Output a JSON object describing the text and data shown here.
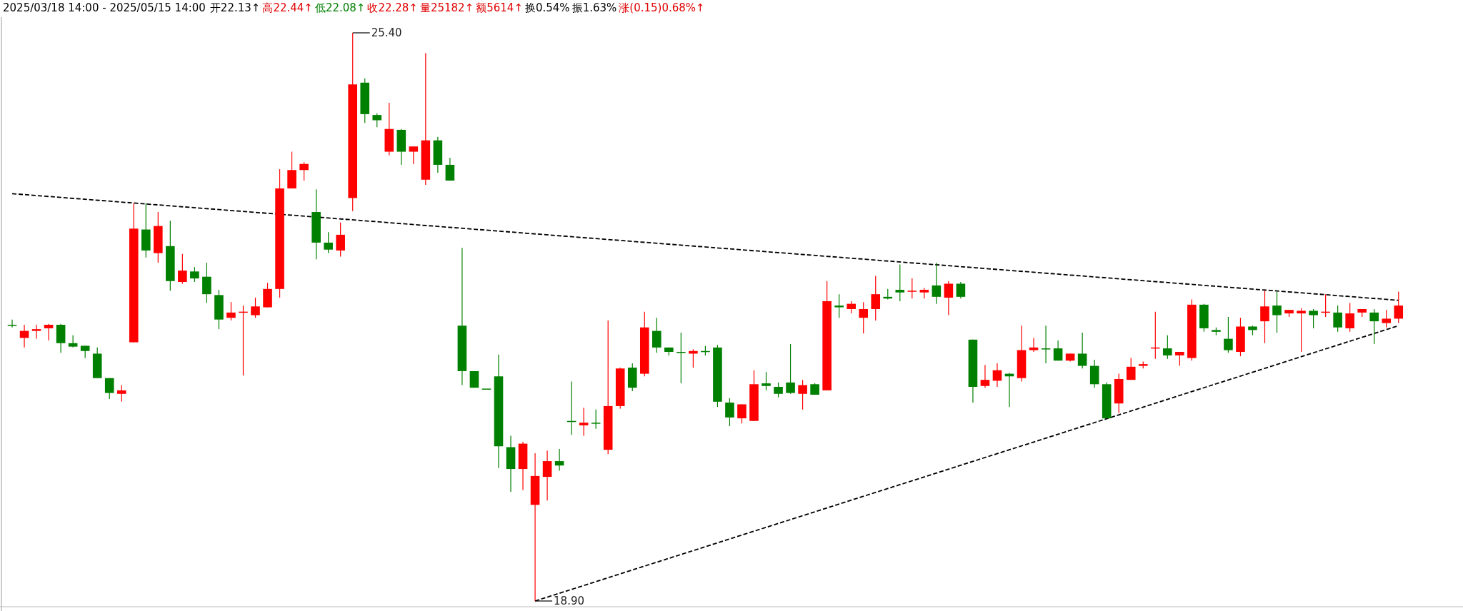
{
  "chart_data": {
    "type": "candlestick",
    "title": "2025/03/18 14:00 - 2025/05/15 14:00",
    "annotations": [
      "开22.13↑",
      "高22.44↑",
      "低22.08↑",
      "收22.28↑",
      "量25182↑",
      "额5614↑",
      "换0.54%",
      "振1.63%",
      "涨(0.15)0.68%↑",
      "25.40",
      "18.90"
    ],
    "categories": [
      null,
      null,
      null,
      null,
      null,
      null,
      null,
      null,
      null,
      null,
      null,
      null,
      null,
      null,
      null,
      null,
      null,
      null,
      null,
      null,
      null,
      null,
      null,
      null,
      null,
      null,
      null,
      null,
      null,
      null,
      null,
      null,
      null,
      null,
      null,
      null,
      null,
      null,
      null,
      null,
      null,
      null,
      null,
      null,
      null,
      null,
      null,
      null,
      null,
      null,
      null,
      null,
      null,
      null,
      null,
      null,
      null,
      null,
      null,
      null,
      null,
      null,
      null,
      null,
      null,
      null,
      null,
      null,
      null,
      null,
      null,
      null,
      null,
      null,
      null,
      null,
      null,
      null,
      null,
      null,
      null,
      null,
      null,
      null,
      null,
      null,
      null,
      null,
      null,
      null,
      null,
      null,
      null,
      null,
      null,
      null,
      null,
      null,
      null,
      null,
      null,
      null,
      null,
      null,
      null,
      null,
      null,
      null,
      null,
      null,
      null,
      null,
      null,
      null,
      null
    ],
    "ohlc": [
      [
        22.06,
        22.12,
        22.03,
        22.05
      ],
      [
        21.91,
        22.06,
        21.8,
        21.99
      ],
      [
        21.99,
        22.06,
        21.9,
        22.01
      ],
      [
        22.02,
        22.07,
        21.88,
        22.06
      ],
      [
        22.06,
        22.07,
        21.74,
        21.85
      ],
      [
        21.85,
        21.94,
        21.8,
        21.81
      ],
      [
        21.82,
        21.82,
        21.68,
        21.76
      ],
      [
        21.73,
        21.8,
        21.45,
        21.45
      ],
      [
        21.45,
        21.45,
        21.21,
        21.28
      ],
      [
        21.27,
        21.37,
        21.18,
        21.31
      ],
      [
        21.86,
        23.45,
        21.86,
        23.16
      ],
      [
        23.15,
        23.45,
        22.83,
        22.91
      ],
      [
        22.88,
        23.35,
        22.77,
        23.19
      ],
      [
        22.96,
        23.25,
        22.45,
        22.56
      ],
      [
        22.55,
        22.87,
        22.53,
        22.68
      ],
      [
        22.67,
        22.72,
        22.55,
        22.59
      ],
      [
        22.61,
        22.77,
        22.31,
        22.41
      ],
      [
        22.4,
        22.46,
        22.01,
        22.12
      ],
      [
        22.14,
        22.32,
        22.11,
        22.2
      ],
      [
        22.2,
        22.28,
        21.48,
        22.21
      ],
      [
        22.17,
        22.37,
        22.14,
        22.27
      ],
      [
        22.26,
        22.54,
        22.26,
        22.47
      ],
      [
        22.47,
        23.84,
        22.37,
        23.62
      ],
      [
        23.62,
        24.04,
        23.62,
        23.83
      ],
      [
        23.83,
        23.92,
        23.71,
        23.9
      ],
      [
        23.35,
        23.61,
        22.81,
        23.0
      ],
      [
        23.0,
        23.12,
        22.88,
        22.92
      ],
      [
        22.91,
        23.23,
        22.84,
        23.09
      ],
      [
        23.51,
        25.4,
        23.36,
        24.81
      ],
      [
        24.83,
        24.88,
        24.37,
        24.47
      ],
      [
        24.46,
        24.48,
        24.32,
        24.4
      ],
      [
        24.04,
        24.6,
        24.0,
        24.3
      ],
      [
        24.29,
        24.3,
        23.89,
        24.04
      ],
      [
        24.04,
        24.1,
        23.9,
        24.1
      ],
      [
        23.72,
        25.17,
        23.66,
        24.17
      ],
      [
        24.17,
        24.21,
        23.8,
        23.89
      ],
      [
        23.89,
        23.97,
        23.71,
        23.71
      ],
      [
        22.05,
        22.94,
        21.37,
        21.53
      ],
      [
        21.53,
        21.53,
        21.34,
        21.34
      ],
      [
        21.33,
        21.33,
        21.33,
        21.33
      ],
      [
        21.47,
        21.72,
        20.42,
        20.67
      ],
      [
        20.66,
        20.79,
        20.15,
        20.41
      ],
      [
        20.41,
        20.72,
        20.17,
        20.7
      ],
      [
        20.0,
        20.59,
        18.9,
        20.33
      ],
      [
        20.32,
        20.62,
        20.05,
        20.5
      ],
      [
        20.5,
        20.64,
        20.39,
        20.45
      ],
      [
        20.96,
        21.41,
        20.8,
        20.95
      ],
      [
        20.91,
        21.11,
        20.79,
        20.94
      ],
      [
        20.94,
        21.09,
        20.87,
        20.93
      ],
      [
        20.63,
        22.11,
        20.58,
        21.13
      ],
      [
        21.13,
        21.57,
        21.1,
        21.56
      ],
      [
        21.57,
        21.62,
        21.3,
        21.34
      ],
      [
        21.5,
        22.21,
        21.47,
        22.03
      ],
      [
        21.99,
        22.14,
        21.74,
        21.8
      ],
      [
        21.8,
        21.8,
        21.71,
        21.75
      ],
      [
        21.75,
        21.97,
        21.39,
        21.74
      ],
      [
        21.73,
        21.78,
        21.57,
        21.76
      ],
      [
        21.76,
        21.82,
        21.71,
        21.75
      ],
      [
        21.8,
        21.83,
        21.12,
        21.18
      ],
      [
        21.17,
        21.22,
        20.9,
        21.0
      ],
      [
        20.99,
        21.15,
        20.93,
        21.15
      ],
      [
        20.96,
        21.54,
        20.96,
        21.38
      ],
      [
        21.39,
        21.52,
        21.31,
        21.36
      ],
      [
        21.35,
        21.4,
        21.23,
        21.27
      ],
      [
        21.4,
        21.84,
        21.27,
        21.28
      ],
      [
        21.27,
        21.43,
        21.09,
        21.37
      ],
      [
        21.38,
        21.39,
        21.26,
        21.26
      ],
      [
        21.31,
        22.56,
        21.31,
        22.33
      ],
      [
        22.28,
        22.41,
        22.14,
        22.26
      ],
      [
        22.24,
        22.33,
        22.19,
        22.3
      ],
      [
        22.14,
        22.32,
        21.96,
        22.24
      ],
      [
        22.24,
        22.62,
        22.11,
        22.41
      ],
      [
        22.38,
        22.47,
        22.35,
        22.36
      ],
      [
        22.46,
        22.75,
        22.33,
        22.43
      ],
      [
        22.44,
        22.59,
        22.36,
        22.45
      ],
      [
        22.43,
        22.48,
        22.36,
        22.46
      ],
      [
        22.51,
        22.77,
        22.3,
        22.38
      ],
      [
        22.37,
        22.56,
        22.17,
        22.53
      ],
      [
        22.53,
        22.55,
        22.36,
        22.38
      ],
      [
        21.89,
        21.89,
        21.17,
        21.35
      ],
      [
        21.36,
        21.6,
        21.34,
        21.43
      ],
      [
        21.42,
        21.62,
        21.35,
        21.54
      ],
      [
        21.5,
        21.51,
        21.12,
        21.47
      ],
      [
        21.45,
        22.05,
        21.41,
        21.77
      ],
      [
        21.77,
        21.91,
        21.75,
        21.8
      ],
      [
        21.79,
        22.05,
        21.62,
        21.78
      ],
      [
        21.79,
        21.88,
        21.65,
        21.65
      ],
      [
        21.65,
        21.73,
        21.64,
        21.73
      ],
      [
        21.73,
        21.97,
        21.56,
        21.59
      ],
      [
        21.59,
        21.66,
        21.34,
        21.38
      ],
      [
        21.38,
        21.4,
        20.99,
        20.99
      ],
      [
        21.16,
        21.5,
        21.05,
        21.44
      ],
      [
        21.43,
        21.68,
        21.43,
        21.58
      ],
      [
        21.59,
        21.64,
        21.56,
        21.61
      ],
      [
        21.79,
        22.21,
        21.67,
        21.8
      ],
      [
        21.79,
        21.94,
        21.67,
        21.71
      ],
      [
        21.71,
        21.75,
        21.59,
        21.75
      ],
      [
        21.68,
        22.35,
        21.65,
        22.29
      ],
      [
        22.29,
        22.3,
        21.98,
        22.02
      ],
      [
        22.0,
        22.03,
        21.94,
        21.98
      ],
      [
        21.9,
        22.15,
        21.74,
        21.77
      ],
      [
        21.75,
        22.14,
        21.7,
        22.04
      ],
      [
        22.04,
        22.05,
        21.94,
        22.0
      ],
      [
        22.1,
        22.45,
        21.85,
        22.27
      ],
      [
        22.28,
        22.44,
        21.97,
        22.17
      ],
      [
        22.19,
        22.23,
        22.15,
        22.23
      ],
      [
        22.19,
        22.25,
        21.75,
        22.22
      ],
      [
        22.22,
        22.24,
        22.02,
        22.17
      ],
      [
        22.2,
        22.41,
        22.15,
        22.21
      ],
      [
        22.2,
        22.28,
        21.98,
        22.03
      ],
      [
        22.02,
        22.31,
        21.98,
        22.19
      ],
      [
        22.2,
        22.24,
        22.15,
        22.24
      ],
      [
        22.2,
        22.24,
        21.84,
        22.1
      ],
      [
        22.08,
        22.23,
        22.03,
        22.13
      ],
      [
        22.13,
        22.44,
        22.08,
        22.28
      ]
    ],
    "colors": [
      "#008000",
      "#ff0000",
      "#ff0000",
      "#ff0000",
      "#008000",
      "#008000",
      "#008000",
      "#008000",
      "#008000",
      "#ff0000",
      "#ff0000",
      "#008000",
      "#ff0000",
      "#008000",
      "#ff0000",
      "#008000",
      "#008000",
      "#008000",
      "#ff0000",
      "#ff0000",
      "#ff0000",
      "#ff0000",
      "#ff0000",
      "#ff0000",
      "#ff0000",
      "#008000",
      "#008000",
      "#ff0000",
      "#ff0000",
      "#008000",
      "#008000",
      "#ff0000",
      "#008000",
      "#ff0000",
      "#ff0000",
      "#008000",
      "#008000",
      "#008000",
      "#008000",
      "#008000",
      "#008000",
      "#008000",
      "#ff0000",
      "#ff0000",
      "#ff0000",
      "#008000",
      "#008000",
      "#ff0000",
      "#008000",
      "#ff0000",
      "#ff0000",
      "#008000",
      "#ff0000",
      "#008000",
      "#008000",
      "#008000",
      "#ff0000",
      "#008000",
      "#008000",
      "#008000",
      "#ff0000",
      "#ff0000",
      "#008000",
      "#008000",
      "#008000",
      "#ff0000",
      "#008000",
      "#ff0000",
      "#008000",
      "#ff0000",
      "#ff0000",
      "#ff0000",
      "#008000",
      "#008000",
      "#ff0000",
      "#ff0000",
      "#008000",
      "#ff0000",
      "#008000",
      "#008000",
      "#ff0000",
      "#ff0000",
      "#008000",
      "#ff0000",
      "#ff0000",
      "#008000",
      "#008000",
      "#ff0000",
      "#008000",
      "#008000",
      "#008000",
      "#ff0000",
      "#ff0000",
      "#ff0000",
      "#ff0000",
      "#008000",
      "#ff0000",
      "#ff0000",
      "#008000",
      "#008000",
      "#008000",
      "#ff0000",
      "#008000",
      "#ff0000",
      "#008000",
      "#ff0000",
      "#ff0000",
      "#008000",
      "#ff0000",
      "#008000",
      "#ff0000",
      "#ff0000",
      "#008000",
      "#ff0000",
      "#ff0000"
    ],
    "series": [
      {
        "type": "line",
        "values": [
          23.56,
          null,
          null,
          null,
          null,
          null,
          null,
          null,
          null,
          null,
          null,
          null,
          null,
          null,
          null,
          null,
          null,
          null,
          null,
          null,
          null,
          null,
          null,
          null,
          null,
          null,
          null,
          null,
          null,
          null,
          null,
          null,
          null,
          null,
          null,
          null,
          null,
          null,
          null,
          null,
          null,
          null,
          null,
          null,
          null,
          null,
          null,
          null,
          null,
          null,
          null,
          null,
          null,
          null,
          null,
          null,
          null,
          null,
          null,
          null,
          null,
          null,
          null,
          null,
          null,
          null,
          null,
          null,
          null,
          null,
          null,
          null,
          null,
          null,
          null,
          null,
          null,
          null,
          null,
          null,
          null,
          null,
          null,
          null,
          null,
          null,
          null,
          null,
          null,
          null,
          null,
          null,
          null,
          null,
          null,
          null,
          null,
          null,
          null,
          null,
          null,
          null,
          null,
          null,
          null,
          null,
          null,
          null,
          null,
          null,
          null,
          null,
          null,
          null,
          22.34
        ],
        "color": "#000000",
        "line_style": "dashed"
      },
      {
        "type": "line",
        "values": [
          null,
          null,
          null,
          null,
          null,
          null,
          null,
          null,
          null,
          null,
          null,
          null,
          null,
          null,
          null,
          null,
          null,
          null,
          null,
          null,
          null,
          null,
          null,
          null,
          null,
          null,
          null,
          null,
          null,
          null,
          null,
          null,
          null,
          null,
          null,
          null,
          null,
          null,
          null,
          null,
          null,
          null,
          null,
          18.9,
          null,
          null,
          null,
          null,
          null,
          null,
          null,
          null,
          null,
          null,
          null,
          null,
          null,
          null,
          null,
          null,
          null,
          null,
          null,
          null,
          null,
          null,
          null,
          null,
          null,
          null,
          null,
          null,
          null,
          null,
          null,
          null,
          null,
          null,
          null,
          null,
          null,
          null,
          null,
          null,
          null,
          null,
          null,
          null,
          null,
          null,
          null,
          null,
          null,
          null,
          null,
          null,
          null,
          null,
          null,
          null,
          null,
          null,
          null,
          null,
          null,
          null,
          null,
          null,
          null,
          null,
          null,
          null,
          null,
          null,
          22.05
        ],
        "color": "#000000",
        "line_style": "dashed"
      }
    ]
  }
}
